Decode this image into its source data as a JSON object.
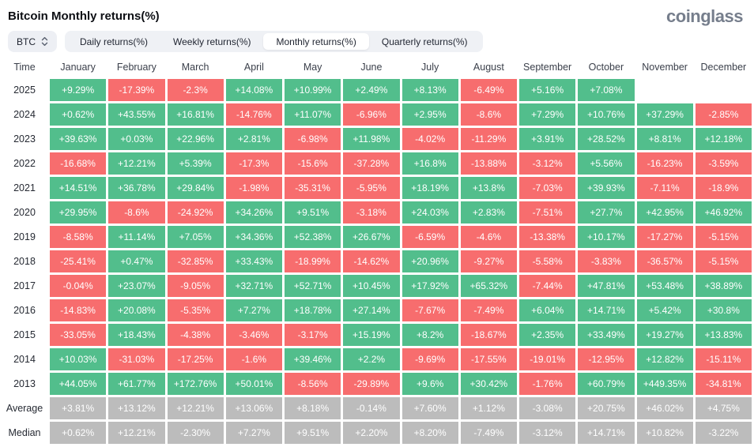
{
  "header": {
    "title": "Bitcoin Monthly returns(%)",
    "logo": "coinglass"
  },
  "controls": {
    "coin_selector": {
      "label": "BTC"
    },
    "tabs": [
      {
        "label": "Daily returns(%)",
        "active": false
      },
      {
        "label": "Weekly returns(%)",
        "active": false
      },
      {
        "label": "Monthly returns(%)",
        "active": true
      },
      {
        "label": "Quarterly returns(%)",
        "active": false
      }
    ]
  },
  "chart_data": {
    "type": "heatmap",
    "title": "Bitcoin Monthly returns(%)",
    "columns": [
      "Time",
      "January",
      "February",
      "March",
      "April",
      "May",
      "June",
      "July",
      "August",
      "September",
      "October",
      "November",
      "December"
    ],
    "colors": {
      "positive": "#52BE8C",
      "negative": "#F76D6E",
      "summary": "#BCBCBC",
      "cell_text": "#FFFFFF"
    },
    "rows": [
      {
        "label": "2025",
        "type": "year",
        "values": [
          "+9.29%",
          "-17.39%",
          "-2.3%",
          "+14.08%",
          "+10.99%",
          "+2.49%",
          "+8.13%",
          "-6.49%",
          "+5.16%",
          "+7.08%",
          null,
          null
        ]
      },
      {
        "label": "2024",
        "type": "year",
        "values": [
          "+0.62%",
          "+43.55%",
          "+16.81%",
          "-14.76%",
          "+11.07%",
          "-6.96%",
          "+2.95%",
          "-8.6%",
          "+7.29%",
          "+10.76%",
          "+37.29%",
          "-2.85%"
        ]
      },
      {
        "label": "2023",
        "type": "year",
        "values": [
          "+39.63%",
          "+0.03%",
          "+22.96%",
          "+2.81%",
          "-6.98%",
          "+11.98%",
          "-4.02%",
          "-11.29%",
          "+3.91%",
          "+28.52%",
          "+8.81%",
          "+12.18%"
        ]
      },
      {
        "label": "2022",
        "type": "year",
        "values": [
          "-16.68%",
          "+12.21%",
          "+5.39%",
          "-17.3%",
          "-15.6%",
          "-37.28%",
          "+16.8%",
          "-13.88%",
          "-3.12%",
          "+5.56%",
          "-16.23%",
          "-3.59%"
        ]
      },
      {
        "label": "2021",
        "type": "year",
        "values": [
          "+14.51%",
          "+36.78%",
          "+29.84%",
          "-1.98%",
          "-35.31%",
          "-5.95%",
          "+18.19%",
          "+13.8%",
          "-7.03%",
          "+39.93%",
          "-7.11%",
          "-18.9%"
        ]
      },
      {
        "label": "2020",
        "type": "year",
        "values": [
          "+29.95%",
          "-8.6%",
          "-24.92%",
          "+34.26%",
          "+9.51%",
          "-3.18%",
          "+24.03%",
          "+2.83%",
          "-7.51%",
          "+27.7%",
          "+42.95%",
          "+46.92%"
        ]
      },
      {
        "label": "2019",
        "type": "year",
        "values": [
          "-8.58%",
          "+11.14%",
          "+7.05%",
          "+34.36%",
          "+52.38%",
          "+26.67%",
          "-6.59%",
          "-4.6%",
          "-13.38%",
          "+10.17%",
          "-17.27%",
          "-5.15%"
        ]
      },
      {
        "label": "2018",
        "type": "year",
        "values": [
          "-25.41%",
          "+0.47%",
          "-32.85%",
          "+33.43%",
          "-18.99%",
          "-14.62%",
          "+20.96%",
          "-9.27%",
          "-5.58%",
          "-3.83%",
          "-36.57%",
          "-5.15%"
        ]
      },
      {
        "label": "2017",
        "type": "year",
        "values": [
          "-0.04%",
          "+23.07%",
          "-9.05%",
          "+32.71%",
          "+52.71%",
          "+10.45%",
          "+17.92%",
          "+65.32%",
          "-7.44%",
          "+47.81%",
          "+53.48%",
          "+38.89%"
        ]
      },
      {
        "label": "2016",
        "type": "year",
        "values": [
          "-14.83%",
          "+20.08%",
          "-5.35%",
          "+7.27%",
          "+18.78%",
          "+27.14%",
          "-7.67%",
          "-7.49%",
          "+6.04%",
          "+14.71%",
          "+5.42%",
          "+30.8%"
        ]
      },
      {
        "label": "2015",
        "type": "year",
        "values": [
          "-33.05%",
          "+18.43%",
          "-4.38%",
          "-3.46%",
          "-3.17%",
          "+15.19%",
          "+8.2%",
          "-18.67%",
          "+2.35%",
          "+33.49%",
          "+19.27%",
          "+13.83%"
        ]
      },
      {
        "label": "2014",
        "type": "year",
        "values": [
          "+10.03%",
          "-31.03%",
          "-17.25%",
          "-1.6%",
          "+39.46%",
          "+2.2%",
          "-9.69%",
          "-17.55%",
          "-19.01%",
          "-12.95%",
          "+12.82%",
          "-15.11%"
        ]
      },
      {
        "label": "2013",
        "type": "year",
        "values": [
          "+44.05%",
          "+61.77%",
          "+172.76%",
          "+50.01%",
          "-8.56%",
          "-29.89%",
          "+9.6%",
          "+30.42%",
          "-1.76%",
          "+60.79%",
          "+449.35%",
          "-34.81%"
        ]
      },
      {
        "label": "Average",
        "type": "summary",
        "values": [
          "+3.81%",
          "+13.12%",
          "+12.21%",
          "+13.06%",
          "+8.18%",
          "-0.14%",
          "+7.60%",
          "+1.12%",
          "-3.08%",
          "+20.75%",
          "+46.02%",
          "+4.75%"
        ]
      },
      {
        "label": "Median",
        "type": "summary",
        "values": [
          "+0.62%",
          "+12.21%",
          "-2.30%",
          "+7.27%",
          "+9.51%",
          "+2.20%",
          "+8.20%",
          "-7.49%",
          "-3.12%",
          "+14.71%",
          "+10.82%",
          "-3.22%"
        ]
      }
    ]
  }
}
